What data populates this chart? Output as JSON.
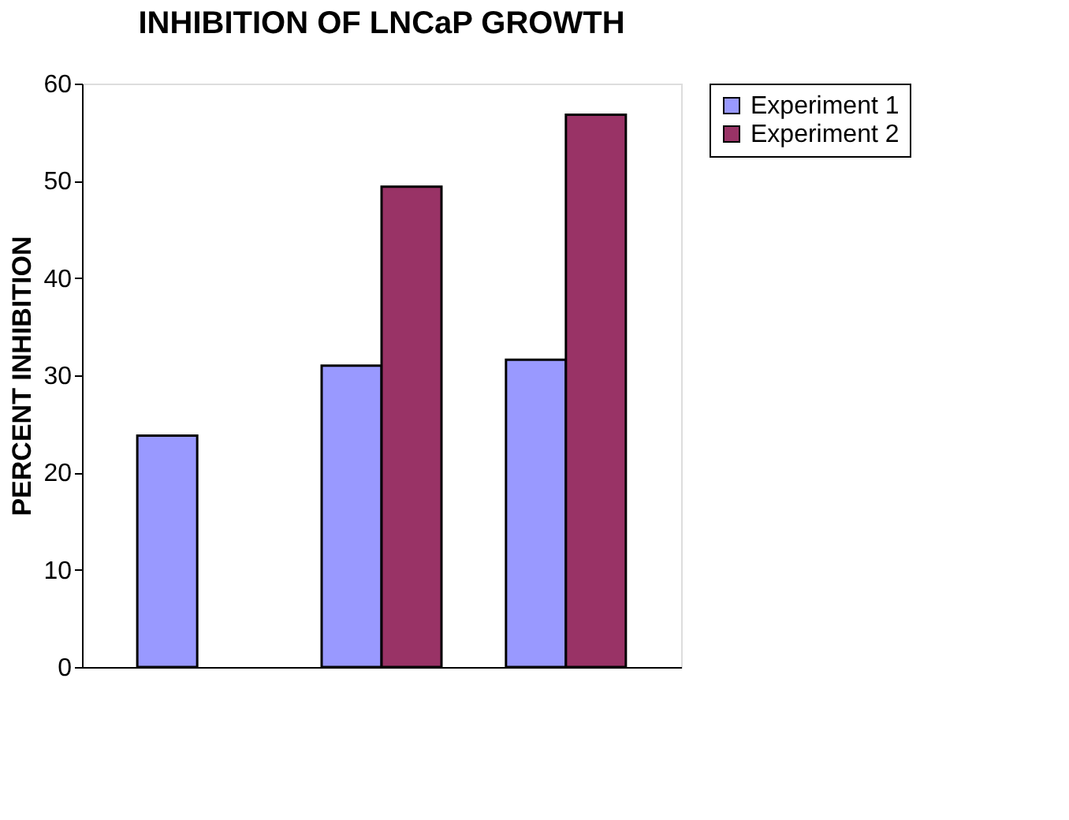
{
  "chart_data": {
    "type": "bar",
    "title": "INHIBITION OF LNCaP GROWTH",
    "ylabel": "PERCENT INHIBITION",
    "categories": [
      null,
      null,
      null
    ],
    "series": [
      {
        "name": "Experiment 1",
        "color": "#9999ff",
        "values": [
          23.8,
          31.0,
          31.6
        ]
      },
      {
        "name": "Experiment 2",
        "color": "#993366",
        "values": [
          null,
          49.4,
          56.8
        ]
      }
    ],
    "ylim": [
      0,
      60
    ],
    "yticks": [
      0,
      10,
      20,
      30,
      40,
      50,
      60
    ],
    "grid": false,
    "legend": "right"
  }
}
